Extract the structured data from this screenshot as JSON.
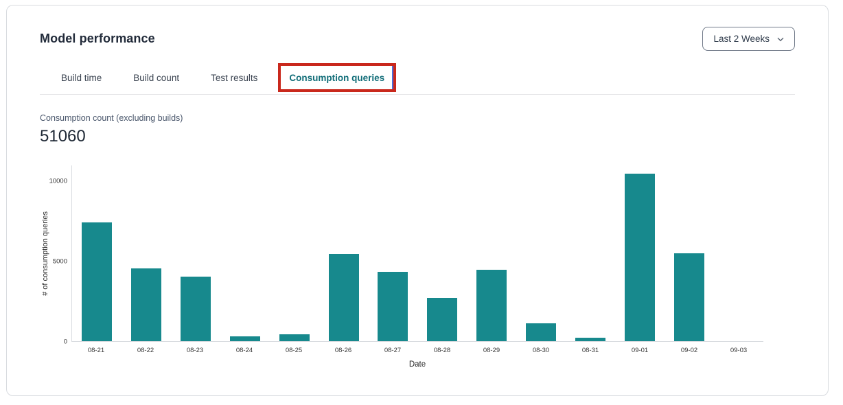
{
  "colors": {
    "bar_teal": "#17898d",
    "active_tab_teal": "#116d78",
    "annotation_red": "#c9281c",
    "annotation_inner_blue": "#4a6fdc"
  },
  "header": {
    "title": "Model performance",
    "range_selector": {
      "value": "Last 2 Weeks",
      "chevron_icon": "chevron-down"
    }
  },
  "tabs": [
    {
      "label": "Build time",
      "active": false
    },
    {
      "label": "Build count",
      "active": false
    },
    {
      "label": "Test results",
      "active": false
    },
    {
      "label": "Consumption queries",
      "active": true,
      "annotated": true
    }
  ],
  "metric": {
    "label": "Consumption count (excluding builds)",
    "value": "51060"
  },
  "chart_data": {
    "type": "bar",
    "title": "",
    "xlabel": "Date",
    "ylabel": "# of consumption queries",
    "categories": [
      "08-21",
      "08-22",
      "08-23",
      "08-24",
      "08-25",
      "08-26",
      "08-27",
      "08-28",
      "08-29",
      "08-30",
      "08-31",
      "09-01",
      "09-02",
      "09-03"
    ],
    "values": [
      7430,
      4560,
      4040,
      310,
      420,
      5470,
      4330,
      2710,
      4460,
      1110,
      210,
      10490,
      5520,
      0
    ],
    "ylim": [
      0,
      11000
    ],
    "yticks": [
      0,
      5000,
      10000
    ],
    "grid": false,
    "legend": null,
    "bar_color": "#17898d"
  }
}
